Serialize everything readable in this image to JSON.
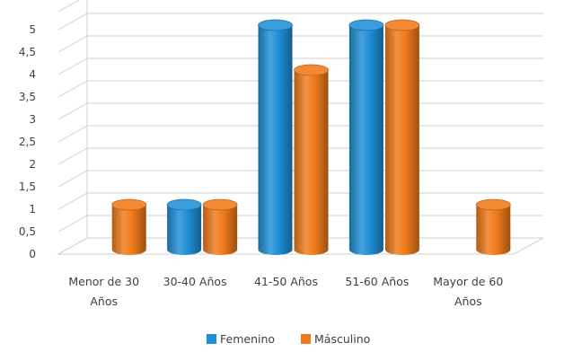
{
  "chart_data": {
    "type": "bar",
    "title": "",
    "xlabel": "",
    "ylabel": "",
    "categories": [
      [
        "Menor de 30",
        "Años"
      ],
      [
        "30-40 Años"
      ],
      [
        "41-50 Años"
      ],
      [
        "51-60 Años"
      ],
      [
        "Mayor de 60",
        "Años"
      ]
    ],
    "series": [
      {
        "name": "Femenino",
        "values": [
          0,
          1,
          5,
          5,
          0
        ],
        "color": "#1f8fd6"
      },
      {
        "name": "Másculino",
        "values": [
          1,
          1,
          4,
          5,
          1
        ],
        "color": "#f07a1a"
      }
    ],
    "ylim": [
      0,
      5
    ],
    "ytick_labels": [
      "0",
      "0,5",
      "1",
      "1,5",
      "2",
      "2,5",
      "3",
      "3,5",
      "4",
      "4,5",
      "5"
    ],
    "grid": true,
    "style": "3d-cylinder",
    "legend_position": "bottom"
  }
}
